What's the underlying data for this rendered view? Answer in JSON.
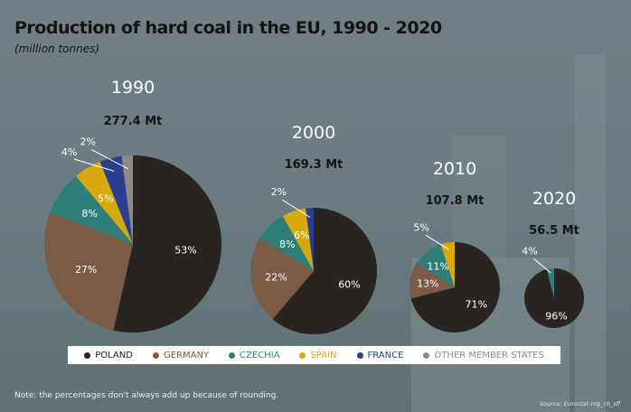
{
  "chart_data": {
    "type": "pie",
    "title": "Production of hard coal in the EU, 1990 - 2020",
    "subtitle": "(million tonnes)",
    "legend": {
      "placement": "bottom",
      "entries": [
        {
          "name": "POLAND",
          "color": "#2a2421"
        },
        {
          "name": "GERMANY",
          "color": "#7b5a46"
        },
        {
          "name": "CZECHIA",
          "color": "#2e7e7a"
        },
        {
          "name": "SPAIN",
          "color": "#d6aa0c"
        },
        {
          "name": "FRANCE",
          "color": "#2a3f92"
        },
        {
          "name": "OTHER MEMBER STATES",
          "color": "#8c8c86"
        }
      ]
    },
    "pies": [
      {
        "year": "1990",
        "total": "277.4 Mt",
        "slices": [
          {
            "name": "POLAND",
            "value": 53,
            "label": "53%"
          },
          {
            "name": "GERMANY",
            "value": 27,
            "label": "27%"
          },
          {
            "name": "CZECHIA",
            "value": 8,
            "label": "8%"
          },
          {
            "name": "SPAIN",
            "value": 5,
            "label": "5%"
          },
          {
            "name": "FRANCE",
            "value": 4,
            "label": "4%"
          },
          {
            "name": "OTHER MEMBER STATES",
            "value": 2,
            "label": "2%"
          }
        ]
      },
      {
        "year": "2000",
        "total": "169.3 Mt",
        "slices": [
          {
            "name": "POLAND",
            "value": 60,
            "label": "60%"
          },
          {
            "name": "GERMANY",
            "value": 22,
            "label": "22%"
          },
          {
            "name": "CZECHIA",
            "value": 8,
            "label": "8%"
          },
          {
            "name": "SPAIN",
            "value": 6,
            "label": "6%"
          },
          {
            "name": "FRANCE",
            "value": 2,
            "label": "2%"
          }
        ]
      },
      {
        "year": "2010",
        "total": "107.8 Mt",
        "slices": [
          {
            "name": "POLAND",
            "value": 71,
            "label": "71%"
          },
          {
            "name": "GERMANY",
            "value": 13,
            "label": "13%"
          },
          {
            "name": "CZECHIA",
            "value": 11,
            "label": "11%"
          },
          {
            "name": "SPAIN",
            "value": 5,
            "label": "5%"
          }
        ]
      },
      {
        "year": "2020",
        "total": "56.5 Mt",
        "slices": [
          {
            "name": "POLAND",
            "value": 96,
            "label": "96%"
          },
          {
            "name": "CZECHIA",
            "value": 4,
            "label": "4%"
          }
        ]
      }
    ]
  },
  "note": "Note: the percentages don't always add up because of rounding.",
  "source": "Source: Eurostat nrg_cb_sff"
}
